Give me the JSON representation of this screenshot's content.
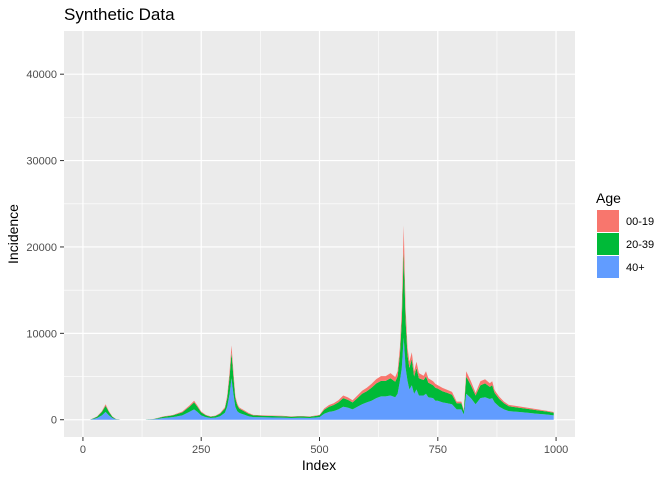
{
  "chart_data": {
    "type": "area",
    "stacked": true,
    "title": "Synthetic Data",
    "xlabel": "Index",
    "ylabel": "Incidence",
    "xlim": [
      -40,
      1040
    ],
    "ylim": [
      -2000,
      45000
    ],
    "x_ticks": [
      0,
      250,
      500,
      750,
      1000
    ],
    "x_tick_labels": [
      "0",
      "250",
      "500",
      "750",
      "1000"
    ],
    "y_ticks": [
      0,
      10000,
      20000,
      30000,
      40000
    ],
    "y_tick_labels": [
      "0",
      "10000",
      "20000",
      "30000",
      "40000"
    ],
    "grid": true,
    "legend": {
      "title": "Age",
      "position": "right"
    },
    "x": [
      15,
      30,
      40,
      48,
      55,
      62,
      70,
      80,
      100,
      130,
      150,
      170,
      190,
      210,
      225,
      235,
      242,
      250,
      260,
      270,
      280,
      290,
      300,
      305,
      310,
      314,
      318,
      322,
      326,
      330,
      335,
      340,
      350,
      360,
      380,
      400,
      420,
      440,
      460,
      480,
      500,
      510,
      520,
      530,
      540,
      550,
      560,
      570,
      580,
      590,
      600,
      610,
      620,
      630,
      640,
      650,
      660,
      665,
      670,
      674,
      678,
      682,
      686,
      690,
      695,
      700,
      705,
      710,
      720,
      725,
      730,
      740,
      745,
      750,
      760,
      770,
      780,
      790,
      800,
      805,
      810,
      820,
      830,
      840,
      850,
      860,
      865,
      870,
      880,
      890,
      900,
      920,
      940,
      960,
      980,
      995
    ],
    "series": [
      {
        "name": "40+",
        "color": "#619CFF",
        "values": [
          0,
          200,
          500,
          900,
          500,
          200,
          40,
          0,
          0,
          0,
          50,
          200,
          300,
          500,
          900,
          1200,
          900,
          500,
          300,
          200,
          250,
          400,
          800,
          1500,
          3000,
          4800,
          3000,
          1500,
          1000,
          800,
          700,
          600,
          400,
          300,
          280,
          260,
          250,
          200,
          220,
          200,
          300,
          700,
          900,
          1000,
          1200,
          1500,
          1400,
          1200,
          1500,
          1800,
          2000,
          2200,
          2500,
          2700,
          2700,
          2800,
          2600,
          3000,
          4500,
          6000,
          9500,
          6000,
          4500,
          3500,
          4000,
          3000,
          3500,
          2800,
          2800,
          3000,
          2600,
          2500,
          2200,
          2200,
          2000,
          1900,
          1800,
          1200,
          1200,
          600,
          3000,
          2500,
          1800,
          2500,
          2600,
          2400,
          2500,
          2000,
          1500,
          1200,
          1000,
          900,
          800,
          700,
          600,
          500
        ]
      },
      {
        "name": "20-39",
        "color": "#00BA38",
        "values": [
          0,
          150,
          400,
          700,
          400,
          150,
          30,
          0,
          0,
          0,
          30,
          150,
          200,
          350,
          600,
          800,
          600,
          350,
          200,
          150,
          180,
          300,
          500,
          1000,
          2000,
          3000,
          2000,
          1000,
          700,
          500,
          450,
          400,
          300,
          200,
          180,
          170,
          160,
          150,
          160,
          150,
          200,
          450,
          600,
          700,
          800,
          1000,
          900,
          800,
          1000,
          1200,
          1300,
          1500,
          1700,
          1800,
          1800,
          2000,
          1800,
          2000,
          3000,
          5500,
          10000,
          5500,
          3000,
          2500,
          3000,
          2000,
          2500,
          2000,
          1800,
          2000,
          1700,
          1500,
          1500,
          1400,
          1300,
          1200,
          1100,
          700,
          700,
          400,
          2000,
          1500,
          1000,
          1500,
          1600,
          1400,
          1500,
          1100,
          900,
          700,
          550,
          500,
          450,
          400,
          350,
          300
        ]
      },
      {
        "name": "00-19",
        "color": "#F8766D",
        "values": [
          0,
          40,
          100,
          200,
          100,
          40,
          10,
          0,
          0,
          0,
          10,
          40,
          50,
          100,
          150,
          200,
          150,
          100,
          60,
          40,
          50,
          80,
          150,
          300,
          600,
          800,
          600,
          300,
          200,
          150,
          130,
          120,
          90,
          60,
          50,
          50,
          50,
          40,
          50,
          40,
          60,
          150,
          200,
          200,
          250,
          300,
          280,
          250,
          300,
          350,
          400,
          450,
          500,
          550,
          550,
          600,
          550,
          600,
          900,
          1500,
          3000,
          1500,
          900,
          700,
          800,
          600,
          700,
          600,
          500,
          600,
          500,
          450,
          450,
          400,
          380,
          350,
          320,
          200,
          200,
          120,
          600,
          450,
          300,
          450,
          480,
          420,
          450,
          330,
          270,
          200,
          170,
          150,
          130,
          120,
          100,
          90
        ]
      }
    ]
  }
}
